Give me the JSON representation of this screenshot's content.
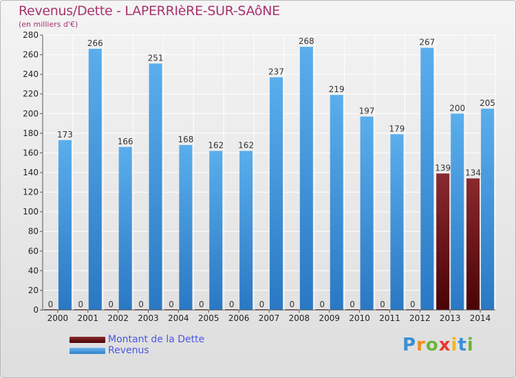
{
  "title": "Revenus/Dette - LAPERRIèRE-SUR-SAôNE",
  "subtitle": "(en milliers d'€)",
  "colors": {
    "debt": "#7a0f14",
    "revenue": "#3b94dc",
    "title": "#a8336e",
    "legend_text": "#4a56e2"
  },
  "legend": [
    {
      "label": "Montant de la Dette",
      "color": "#5c0d10"
    },
    {
      "label": "Revenus",
      "color": "#4d9fe4"
    }
  ],
  "brand": {
    "letters": [
      "P",
      "r",
      "o",
      "x",
      "i",
      "t",
      "i"
    ],
    "colors": [
      "#3a8fd8",
      "#f28c1e",
      "#6bb53a",
      "#e63a2e",
      "#f2b61e",
      "#3a8fd8",
      "#6bb53a"
    ]
  },
  "chart_data": {
    "type": "bar",
    "categories": [
      "2000",
      "2001",
      "2002",
      "2003",
      "2004",
      "2005",
      "2006",
      "2007",
      "2008",
      "2009",
      "2010",
      "2011",
      "2012",
      "2013",
      "2014"
    ],
    "series": [
      {
        "name": "Montant de la Dette",
        "values": [
          0,
          0,
          0,
          0,
          0,
          0,
          0,
          0,
          0,
          0,
          0,
          0,
          0,
          139,
          134
        ]
      },
      {
        "name": "Revenus",
        "values": [
          173,
          266,
          166,
          251,
          168,
          162,
          162,
          237,
          268,
          219,
          197,
          179,
          267,
          200,
          205
        ]
      }
    ],
    "title": "Revenus/Dette - LAPERRIèRE-SUR-SAôNE",
    "xlabel": "",
    "ylabel": "(en milliers d'€)",
    "ylim": [
      0,
      280
    ],
    "yticks": [
      0,
      20,
      40,
      60,
      80,
      100,
      120,
      140,
      160,
      180,
      200,
      220,
      240,
      260,
      280
    ],
    "grid": true,
    "legend_position": "bottom-left"
  }
}
